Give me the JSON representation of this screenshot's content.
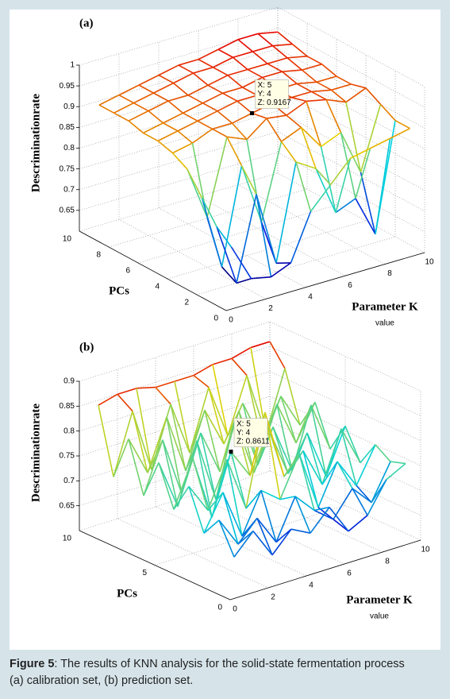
{
  "chart_data": [
    {
      "type": "surface",
      "panel_label": "(a)",
      "zlabel": "Descriminationrate",
      "ylabel": "PCs",
      "xlabel": [
        "Parameter K",
        "value"
      ],
      "x": [
        1,
        2,
        3,
        4,
        5,
        6,
        7,
        8,
        9,
        10
      ],
      "y": [
        1,
        2,
        3,
        4,
        5,
        6,
        7,
        8,
        9,
        10
      ],
      "z": [
        [
          0.72,
          0.63,
          0.62,
          0.64,
          0.75,
          0.8,
          0.85,
          0.86,
          0.87,
          0.88
        ],
        [
          0.75,
          0.6,
          0.8,
          0.62,
          0.85,
          0.82,
          0.7,
          0.72,
          0.62,
          0.88
        ],
        [
          0.8,
          0.62,
          0.85,
          0.7,
          0.88,
          0.9,
          0.84,
          0.86,
          0.75,
          0.9
        ],
        [
          0.85,
          0.72,
          0.9,
          0.88,
          0.9167,
          0.91,
          0.93,
          0.92,
          0.9,
          0.92
        ],
        [
          0.87,
          0.88,
          0.9,
          0.9,
          0.91,
          0.92,
          0.92,
          0.92,
          0.91,
          0.91
        ],
        [
          0.88,
          0.89,
          0.9,
          0.91,
          0.92,
          0.92,
          0.92,
          0.92,
          0.91,
          0.91
        ],
        [
          0.88,
          0.89,
          0.9,
          0.91,
          0.92,
          0.92,
          0.93,
          0.93,
          0.92,
          0.92
        ],
        [
          0.89,
          0.9,
          0.91,
          0.91,
          0.92,
          0.93,
          0.93,
          0.93,
          0.93,
          0.92
        ],
        [
          0.89,
          0.9,
          0.91,
          0.92,
          0.93,
          0.93,
          0.94,
          0.94,
          0.94,
          0.93
        ],
        [
          0.89,
          0.9,
          0.91,
          0.92,
          0.93,
          0.93,
          0.94,
          0.95,
          0.95,
          0.94
        ]
      ],
      "xlim": [
        0,
        10
      ],
      "ylim": [
        0,
        10
      ],
      "zlim": [
        0.6,
        1
      ],
      "xticks": [
        0,
        2,
        4,
        6,
        8,
        10
      ],
      "yticks": [
        0,
        2,
        4,
        6,
        8,
        10
      ],
      "zticks": [
        0.65,
        0.7,
        0.75,
        0.8,
        0.85,
        0.9,
        0.95,
        1
      ],
      "datatip": {
        "point": [
          4,
          4
        ],
        "lines": [
          {
            "value": 5,
            "label": "X: 5"
          },
          {
            "value": 4,
            "label": "Y: 4"
          },
          {
            "value": 0.9167,
            "label": "Z: 0.9167"
          }
        ]
      }
    },
    {
      "type": "surface",
      "panel_label": "(b)",
      "zlabel": "Descriminationrate",
      "ylabel": "PCs",
      "xlabel": [
        "Parameter K",
        "value"
      ],
      "x": [
        1,
        2,
        3,
        4,
        5,
        6,
        7,
        8,
        9,
        10
      ],
      "y": [
        1,
        2,
        3,
        4,
        5,
        6,
        7,
        8,
        9,
        10
      ],
      "z": [
        [
          0.66,
          0.7,
          0.64,
          0.68,
          0.66,
          0.7,
          0.64,
          0.66,
          0.72,
          0.74
        ],
        [
          0.72,
          0.66,
          0.7,
          0.64,
          0.72,
          0.68,
          0.65,
          0.7,
          0.66,
          0.73
        ],
        [
          0.68,
          0.75,
          0.65,
          0.73,
          0.7,
          0.78,
          0.66,
          0.74,
          0.68,
          0.75
        ],
        [
          0.76,
          0.7,
          0.79,
          0.68,
          0.8611,
          0.72,
          0.76,
          0.68,
          0.78,
          0.7
        ],
        [
          0.7,
          0.79,
          0.66,
          0.78,
          0.72,
          0.8,
          0.7,
          0.77,
          0.67,
          0.76
        ],
        [
          0.78,
          0.68,
          0.8,
          0.67,
          0.82,
          0.7,
          0.78,
          0.68,
          0.8,
          0.7
        ],
        [
          0.7,
          0.8,
          0.68,
          0.79,
          0.7,
          0.81,
          0.69,
          0.8,
          0.71,
          0.78
        ],
        [
          0.8,
          0.72,
          0.82,
          0.7,
          0.81,
          0.73,
          0.8,
          0.71,
          0.79,
          0.72
        ],
        [
          0.71,
          0.83,
          0.7,
          0.82,
          0.71,
          0.83,
          0.72,
          0.83,
          0.7,
          0.82
        ],
        [
          0.84,
          0.85,
          0.85,
          0.84,
          0.84,
          0.84,
          0.85,
          0.85,
          0.86,
          0.86
        ]
      ],
      "xlim": [
        0,
        10
      ],
      "ylim": [
        0,
        10
      ],
      "zlim": [
        0.6,
        0.9
      ],
      "xticks": [
        0,
        2,
        4,
        6,
        8,
        10
      ],
      "yticks": [
        0,
        5,
        10
      ],
      "zticks": [
        0.65,
        0.7,
        0.75,
        0.8,
        0.85,
        0.9
      ],
      "datatip": {
        "point": [
          3,
          4
        ],
        "lines": [
          {
            "value": 5,
            "label": "X: 5"
          },
          {
            "value": 4,
            "label": "Y: 4"
          },
          {
            "value": 0.8611,
            "label": "Z: 0.8611"
          }
        ]
      }
    }
  ],
  "caption": {
    "label": "Figure 5",
    "lines": [
      ": The results of KNN analysis for the solid-state fermentation process",
      "(a) calibration set, (b) prediction set."
    ]
  }
}
